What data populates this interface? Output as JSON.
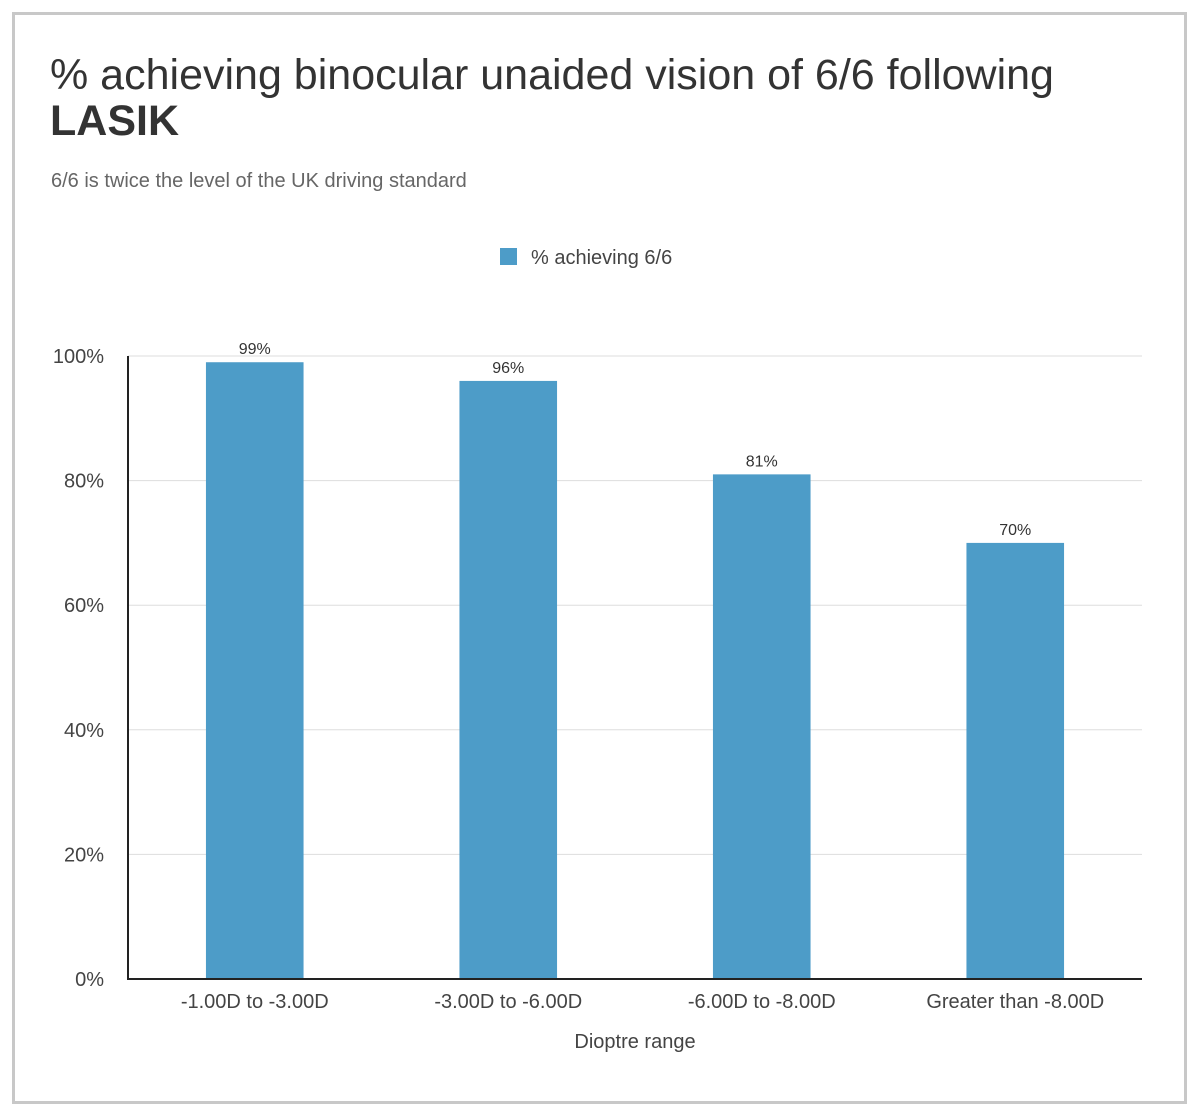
{
  "chart_data": {
    "type": "bar",
    "title": {
      "prefix": "% achieving binocular unaided vision of 6/6 following ",
      "emphasis": "LASIK"
    },
    "subtitle": "6/6 is twice the level of the UK driving standard",
    "categories": [
      "-1.00D to -3.00D",
      "-3.00D to -6.00D",
      "-6.00D to -8.00D",
      "Greater than -8.00D"
    ],
    "series": [
      {
        "name": "% achieving 6/6",
        "values": [
          99,
          96,
          81,
          70
        ],
        "labels": [
          "99%",
          "96%",
          "81%",
          "70%"
        ],
        "color": "#4d9cc8"
      }
    ],
    "xlabel": "Dioptre range",
    "ylabel": "",
    "ylim": [
      0,
      100
    ],
    "yticks": [
      0,
      20,
      40,
      60,
      80,
      100
    ],
    "ytick_labels": [
      "0%",
      "20%",
      "40%",
      "60%",
      "80%",
      "100%"
    ],
    "grid": true,
    "legend_position": "top-center"
  }
}
